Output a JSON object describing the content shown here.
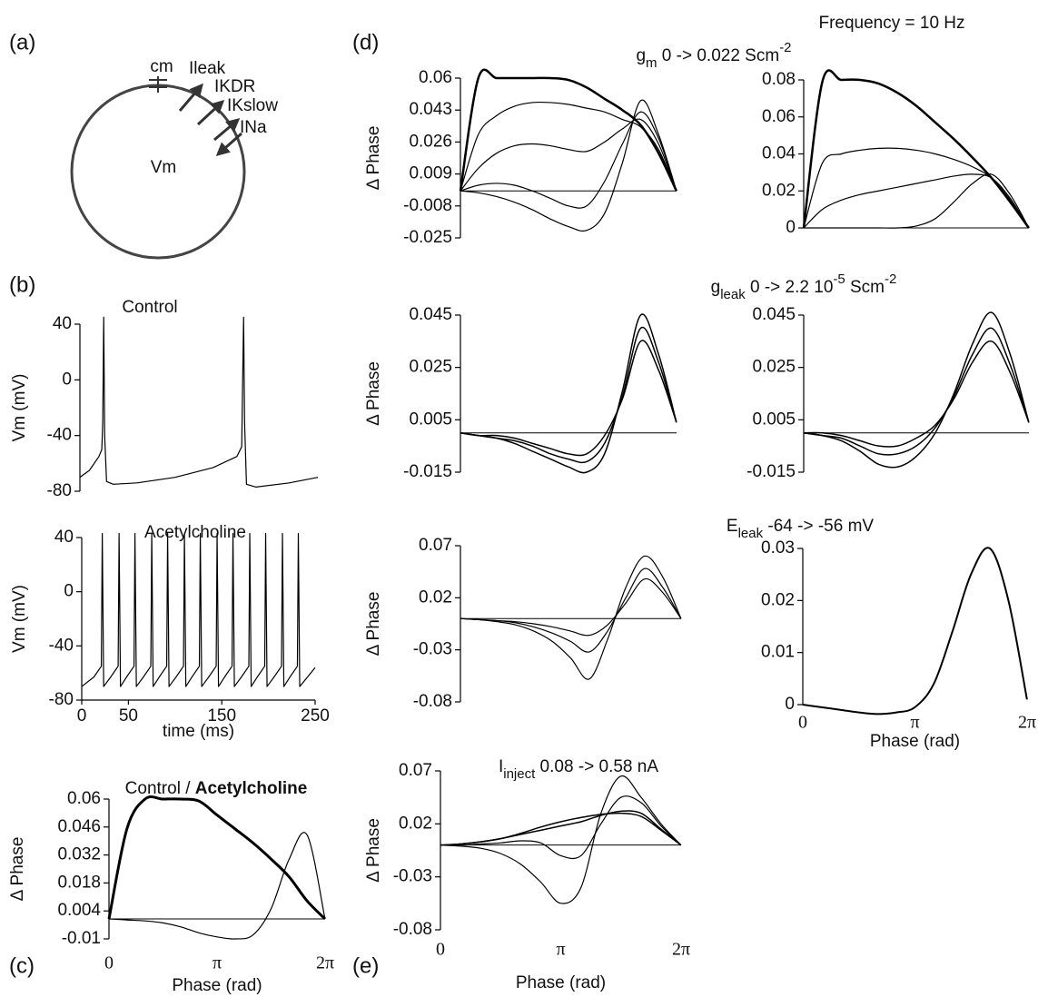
{
  "header": "Frequency = 10 Hz",
  "panel_a": {
    "label": "(a)",
    "labels": [
      "cm",
      "Ileak",
      "IKDR",
      "IKslow",
      "INa",
      "Vm"
    ]
  },
  "chart_data": [
    {
      "type": "line",
      "panel": "(b)",
      "title": [
        {
          "text": "Control"
        }
      ],
      "ylabel": "Vm (mV)",
      "xlim": [
        0,
        250
      ],
      "ylim": [
        -80,
        40
      ],
      "yticks": [
        40,
        0,
        -40,
        -80
      ],
      "smooth": false,
      "x": [
        0,
        10,
        20,
        23,
        24,
        25,
        26,
        28,
        35,
        60,
        100,
        140,
        165,
        170,
        171,
        172,
        173,
        175,
        185,
        220,
        250
      ],
      "series": [
        {
          "color": "#000000",
          "width": 1.2,
          "values": [
            -70,
            -65,
            -55,
            -50,
            -30,
            45,
            -40,
            -73,
            -75,
            -74,
            -70,
            -63,
            -55,
            -48,
            0,
            45,
            -30,
            -75,
            -77,
            -74,
            -70
          ]
        }
      ]
    },
    {
      "type": "line",
      "title": [
        {
          "text": "Acetylcholine"
        }
      ],
      "ylabel": "Vm (mV)",
      "xlabel": "time (ms)",
      "xlim": [
        0,
        250
      ],
      "ylim": [
        -80,
        40
      ],
      "yticks": [
        40,
        0,
        -40,
        -80
      ],
      "xticks": [
        0,
        50,
        150,
        250
      ],
      "x_axis_line": true,
      "smooth": false,
      "x": [
        0,
        13,
        21,
        22,
        23.5,
        31,
        39,
        40,
        41.5,
        48,
        56,
        57,
        58.5,
        66,
        74,
        75,
        76.5,
        83,
        91,
        92,
        93.5,
        101,
        109,
        110,
        111.5,
        118,
        126,
        127,
        128.5,
        136,
        144,
        145,
        146.5,
        153,
        161,
        162,
        163.5,
        171,
        179,
        180,
        181.5,
        188,
        196,
        197,
        198.5,
        206,
        214,
        215,
        216.5,
        223,
        231,
        232,
        233.5,
        250
      ],
      "series": [
        {
          "color": "#000000",
          "width": 1.2,
          "values": [
            -70,
            -63,
            -55,
            43,
            -70,
            -63,
            -55,
            43,
            -70,
            -63,
            -55,
            43,
            -70,
            -63,
            -55,
            43,
            -70,
            -63,
            -55,
            43,
            -70,
            -63,
            -55,
            43,
            -70,
            -63,
            -55,
            43,
            -70,
            -63,
            -55,
            43,
            -70,
            -63,
            -55,
            43,
            -70,
            -63,
            -55,
            43,
            -70,
            -63,
            -55,
            43,
            -70,
            -63,
            -55,
            43,
            -70,
            -63,
            -55,
            43,
            -70,
            -56
          ]
        }
      ]
    },
    {
      "type": "line",
      "panel": "(c)",
      "title": [
        {
          "text": "Control / "
        },
        {
          "text": "Acetylcholine",
          "style": "bold"
        }
      ],
      "ylabel": "Δ Phase",
      "xlabel": "Phase (rad)",
      "xlim": [
        0,
        6.2832
      ],
      "ylim": [
        -0.01,
        0.06
      ],
      "yticks": [
        0.06,
        0.046,
        0.032,
        0.018,
        0.004,
        -0.01
      ],
      "xticks": [
        0,
        {
          "value": 3.1416,
          "label": "π"
        },
        {
          "value": 6.2832,
          "label": "2π"
        }
      ],
      "zero_line": true,
      "smooth": true,
      "x": [
        0,
        0.52,
        1.05,
        1.57,
        2.09,
        2.62,
        3.14,
        3.67,
        4.19,
        4.71,
        5.24,
        5.76,
        6.28
      ],
      "series": [
        {
          "color": "#000000",
          "width": 1.2,
          "values": [
            0,
            -0.0005,
            -0.001,
            -0.002,
            -0.004,
            -0.007,
            -0.009,
            -0.01,
            -0.008,
            0.005,
            0.03,
            0.042,
            0
          ]
        },
        {
          "color": "#000000",
          "width": 3,
          "values": [
            0,
            0.045,
            0.06,
            0.06,
            0.06,
            0.059,
            0.052,
            0.045,
            0.038,
            0.03,
            0.021,
            0.009,
            0
          ]
        }
      ]
    },
    {
      "type": "line",
      "panel": "(d)",
      "ylabel": "Δ Phase",
      "xlim": [
        0,
        6.2832
      ],
      "ylim": [
        -0.025,
        0.06
      ],
      "yticks": [
        0.06,
        0.043,
        0.026,
        0.009,
        -0.008,
        -0.025
      ],
      "zero_line": true,
      "smooth": true,
      "x": [
        0,
        0.52,
        1.05,
        1.57,
        2.09,
        2.62,
        3.14,
        3.67,
        4.19,
        4.71,
        5.24,
        5.76,
        6.28
      ],
      "series": [
        {
          "color": "#000000",
          "width": 1.2,
          "values": [
            0,
            -0.001,
            -0.003,
            -0.006,
            -0.01,
            -0.015,
            -0.019,
            -0.021,
            -0.012,
            0.015,
            0.048,
            0.03,
            0
          ]
        },
        {
          "color": "#000000",
          "width": 1.2,
          "values": [
            0,
            0.003,
            0.004,
            0.003,
            0,
            -0.004,
            -0.008,
            -0.008,
            0.005,
            0.025,
            0.042,
            0.028,
            0
          ]
        },
        {
          "color": "#000000",
          "width": 1.2,
          "values": [
            0,
            0.012,
            0.02,
            0.024,
            0.025,
            0.024,
            0.022,
            0.021,
            0.026,
            0.033,
            0.038,
            0.025,
            0
          ]
        },
        {
          "color": "#000000",
          "width": 1.2,
          "values": [
            0,
            0.03,
            0.04,
            0.045,
            0.047,
            0.047,
            0.046,
            0.044,
            0.042,
            0.038,
            0.034,
            0.022,
            0
          ]
        },
        {
          "color": "#000000",
          "width": 2.5,
          "values": [
            0,
            0.06,
            0.06,
            0.06,
            0.06,
            0.06,
            0.059,
            0.055,
            0.049,
            0.043,
            0.035,
            0.02,
            0
          ]
        }
      ]
    },
    {
      "type": "line",
      "title": [
        {
          "text": "g"
        },
        {
          "text": "m",
          "style": "sub"
        },
        {
          "text": " 0 -> 0.022 Scm"
        },
        {
          "text": "-2",
          "style": "sup"
        }
      ],
      "xlim": [
        0,
        6.2832
      ],
      "ylim": [
        0,
        0.08
      ],
      "yticks": [
        0.08,
        0.06,
        0.04,
        0.02,
        0
      ],
      "zero_line": true,
      "smooth": true,
      "x": [
        0,
        0.52,
        1.05,
        1.57,
        2.09,
        2.62,
        3.14,
        3.67,
        4.19,
        4.71,
        5.24,
        5.76,
        6.28
      ],
      "series": [
        {
          "color": "#000000",
          "width": 1.2,
          "values": [
            0,
            0,
            0,
            0,
            0,
            0,
            0.001,
            0.005,
            0.014,
            0.024,
            0.029,
            0.018,
            0
          ]
        },
        {
          "color": "#000000",
          "width": 1.2,
          "values": [
            0,
            0.01,
            0.015,
            0.018,
            0.02,
            0.022,
            0.024,
            0.026,
            0.028,
            0.029,
            0.027,
            0.016,
            0
          ]
        },
        {
          "color": "#000000",
          "width": 1.2,
          "values": [
            0,
            0.035,
            0.04,
            0.042,
            0.043,
            0.043,
            0.042,
            0.04,
            0.037,
            0.033,
            0.027,
            0.015,
            0
          ]
        },
        {
          "color": "#000000",
          "width": 2.5,
          "values": [
            0,
            0.079,
            0.08,
            0.08,
            0.078,
            0.073,
            0.066,
            0.057,
            0.048,
            0.038,
            0.027,
            0.014,
            0
          ]
        }
      ]
    },
    {
      "type": "line",
      "ylabel": "Δ Phase",
      "xlim": [
        0,
        6.2832
      ],
      "ylim": [
        -0.015,
        0.045
      ],
      "yticks": [
        0.045,
        0.025,
        0.005,
        -0.015
      ],
      "zero_line": true,
      "smooth": true,
      "x": [
        0,
        0.52,
        1.05,
        1.57,
        2.09,
        2.62,
        3.14,
        3.67,
        4.19,
        4.71,
        5.24,
        5.76,
        6.28
      ],
      "series": [
        {
          "color": "#000000",
          "width": 1.5,
          "values": [
            0,
            -0.001,
            -0.002,
            -0.004,
            -0.007,
            -0.01,
            -0.013,
            -0.015,
            -0.008,
            0.016,
            0.045,
            0.03,
            0.004
          ]
        },
        {
          "color": "#000000",
          "width": 1.5,
          "values": [
            0,
            -0.001,
            -0.002,
            -0.003,
            -0.005,
            -0.008,
            -0.01,
            -0.011,
            -0.004,
            0.014,
            0.04,
            0.027,
            0.004
          ]
        },
        {
          "color": "#000000",
          "width": 1.5,
          "values": [
            0,
            -0.001,
            -0.001,
            -0.002,
            -0.004,
            -0.006,
            -0.008,
            -0.008,
            -0.001,
            0.013,
            0.035,
            0.024,
            0.004
          ]
        }
      ]
    },
    {
      "type": "line",
      "title": [
        {
          "text": "g"
        },
        {
          "text": "leak",
          "style": "sub"
        },
        {
          "text": " 0 -> 2.2 10"
        },
        {
          "text": "-5",
          "style": "sup"
        },
        {
          "text": " Scm"
        },
        {
          "text": "-2",
          "style": "sup"
        }
      ],
      "xlim": [
        0,
        6.2832
      ],
      "ylim": [
        -0.015,
        0.045
      ],
      "yticks": [
        0.045,
        0.025,
        0.005,
        -0.015
      ],
      "zero_line": true,
      "smooth": true,
      "x": [
        0,
        0.52,
        1.05,
        1.57,
        2.09,
        2.62,
        3.14,
        3.67,
        4.19,
        4.71,
        5.24,
        5.76,
        6.28
      ],
      "series": [
        {
          "color": "#000000",
          "width": 1.5,
          "values": [
            0,
            -0.001,
            -0.003,
            -0.007,
            -0.012,
            -0.013,
            -0.009,
            0,
            0.015,
            0.034,
            0.046,
            0.03,
            0.004
          ]
        },
        {
          "color": "#000000",
          "width": 1.5,
          "values": [
            0,
            -0.001,
            -0.002,
            -0.005,
            -0.008,
            -0.008,
            -0.005,
            0.002,
            0.014,
            0.03,
            0.04,
            0.026,
            0.004
          ]
        },
        {
          "color": "#000000",
          "width": 1.5,
          "values": [
            0,
            0,
            -0.001,
            -0.003,
            -0.005,
            -0.005,
            -0.002,
            0.003,
            0.013,
            0.027,
            0.035,
            0.023,
            0.004
          ]
        }
      ]
    },
    {
      "type": "line",
      "ylabel": "Δ Phase",
      "xlim": [
        0,
        6.2832
      ],
      "ylim": [
        -0.08,
        0.07
      ],
      "yticks": [
        0.07,
        0.02,
        -0.03,
        -0.08
      ],
      "zero_line": true,
      "smooth": true,
      "x": [
        0,
        0.52,
        1.05,
        1.57,
        2.09,
        2.62,
        3.14,
        3.67,
        4.19,
        4.71,
        5.24,
        5.76,
        6.28
      ],
      "series": [
        {
          "color": "#000000",
          "width": 1.2,
          "values": [
            0,
            -0.001,
            -0.003,
            -0.006,
            -0.012,
            -0.022,
            -0.038,
            -0.058,
            -0.02,
            0.03,
            0.06,
            0.04,
            0
          ]
        },
        {
          "color": "#000000",
          "width": 1.2,
          "values": [
            0,
            -0.001,
            -0.002,
            -0.004,
            -0.008,
            -0.014,
            -0.022,
            -0.032,
            -0.012,
            0.02,
            0.048,
            0.03,
            0
          ]
        },
        {
          "color": "#000000",
          "width": 1.2,
          "values": [
            0,
            -0.001,
            -0.002,
            -0.003,
            -0.005,
            -0.008,
            -0.012,
            -0.016,
            -0.006,
            0.015,
            0.038,
            0.025,
            0
          ]
        }
      ]
    },
    {
      "type": "line",
      "title": [
        {
          "text": "E"
        },
        {
          "text": "leak",
          "style": "sub"
        },
        {
          "text": " -64 -> -56 mV"
        }
      ],
      "xlabel": "Phase (rad)",
      "xlim": [
        0,
        6.2832
      ],
      "ylim": [
        0,
        0.03
      ],
      "yticks": [
        0.03,
        0.02,
        0.01,
        0
      ],
      "xticks": [
        0,
        {
          "value": 3.1416,
          "label": "π"
        },
        {
          "value": 6.2832,
          "label": "2π"
        }
      ],
      "smooth": true,
      "x": [
        0,
        0.52,
        1.05,
        1.57,
        2.09,
        2.62,
        3.14,
        3.67,
        4.19,
        4.71,
        5.24,
        5.76,
        6.28
      ],
      "series": [
        {
          "color": "#000000",
          "width": 2,
          "values": [
            0,
            -0.0005,
            -0.001,
            -0.0015,
            -0.0018,
            -0.0015,
            -0.0005,
            0.004,
            0.014,
            0.025,
            0.03,
            0.02,
            0.001
          ]
        }
      ]
    },
    {
      "type": "line",
      "panel": "(e)",
      "title": [
        {
          "text": "I"
        },
        {
          "text": "inject",
          "style": "sub"
        },
        {
          "text": " 0.08 -> 0.58 nA"
        }
      ],
      "ylabel": "Δ Phase",
      "xlabel": "Phase (rad)",
      "xlim": [
        0,
        6.2832
      ],
      "ylim": [
        -0.08,
        0.07
      ],
      "yticks": [
        0.07,
        0.02,
        -0.03,
        -0.08
      ],
      "xticks": [
        0,
        {
          "value": 3.1416,
          "label": "π"
        },
        {
          "value": 6.2832,
          "label": "2π"
        }
      ],
      "zero_line": true,
      "smooth": true,
      "x": [
        0,
        0.52,
        1.05,
        1.57,
        2.09,
        2.62,
        3.14,
        3.67,
        4.19,
        4.71,
        5.24,
        5.76,
        6.28
      ],
      "series": [
        {
          "color": "#000000",
          "width": 1.2,
          "values": [
            0,
            -0.001,
            -0.003,
            -0.008,
            -0.018,
            -0.035,
            -0.055,
            -0.04,
            0.03,
            0.065,
            0.045,
            0.02,
            0
          ]
        },
        {
          "color": "#000000",
          "width": 1.2,
          "values": [
            0,
            0,
            0.001,
            0.002,
            0.004,
            0.002,
            -0.01,
            -0.01,
            0.02,
            0.045,
            0.04,
            0.018,
            0
          ]
        },
        {
          "color": "#000000",
          "width": 1.5,
          "values": [
            0,
            0.001,
            0.003,
            0.006,
            0.01,
            0.014,
            0.018,
            0.022,
            0.028,
            0.032,
            0.03,
            0.015,
            0
          ]
        },
        {
          "color": "#000000",
          "width": 1.5,
          "values": [
            0,
            0.001,
            0.003,
            0.006,
            0.011,
            0.017,
            0.022,
            0.026,
            0.029,
            0.03,
            0.027,
            0.014,
            0
          ]
        }
      ]
    }
  ]
}
